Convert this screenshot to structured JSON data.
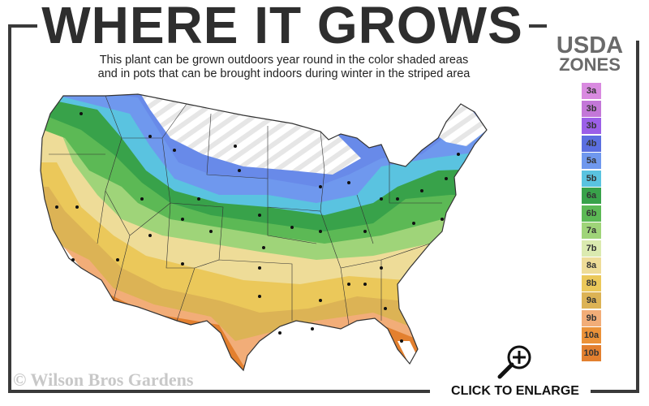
{
  "header": {
    "title": "WHERE IT GROWS",
    "subtitle_line1": "This plant can be grown outdoors year round in the color shaded areas",
    "subtitle_line2": "and in pots that can be brought indoors during winter in the striped area"
  },
  "legend": {
    "title_line1": "USDA",
    "title_line2": "ZONES",
    "zones": [
      {
        "label": "3a",
        "color": "#d98ae0"
      },
      {
        "label": "3b",
        "color": "#c377d8"
      },
      {
        "label": "3b",
        "color": "#9b5fe8"
      },
      {
        "label": "4b",
        "color": "#5b6fe0"
      },
      {
        "label": "5a",
        "color": "#6f98ee"
      },
      {
        "label": "5b",
        "color": "#5ac3e0"
      },
      {
        "label": "6a",
        "color": "#38a24a"
      },
      {
        "label": "6b",
        "color": "#5cb955"
      },
      {
        "label": "7a",
        "color": "#9fd479"
      },
      {
        "label": "7b",
        "color": "#dbeab0"
      },
      {
        "label": "8a",
        "color": "#eedc98"
      },
      {
        "label": "8b",
        "color": "#ebc85a"
      },
      {
        "label": "9a",
        "color": "#dcb355"
      },
      {
        "label": "9b",
        "color": "#f2ad78"
      },
      {
        "label": "10a",
        "color": "#eb9238"
      },
      {
        "label": "10b",
        "color": "#e3802f"
      }
    ]
  },
  "footer": {
    "copyright": "© Wilson Bros Gardens",
    "enlarge_label": "CLICK TO ENLARGE",
    "enlarge_icon": "magnifier-plus-icon"
  }
}
